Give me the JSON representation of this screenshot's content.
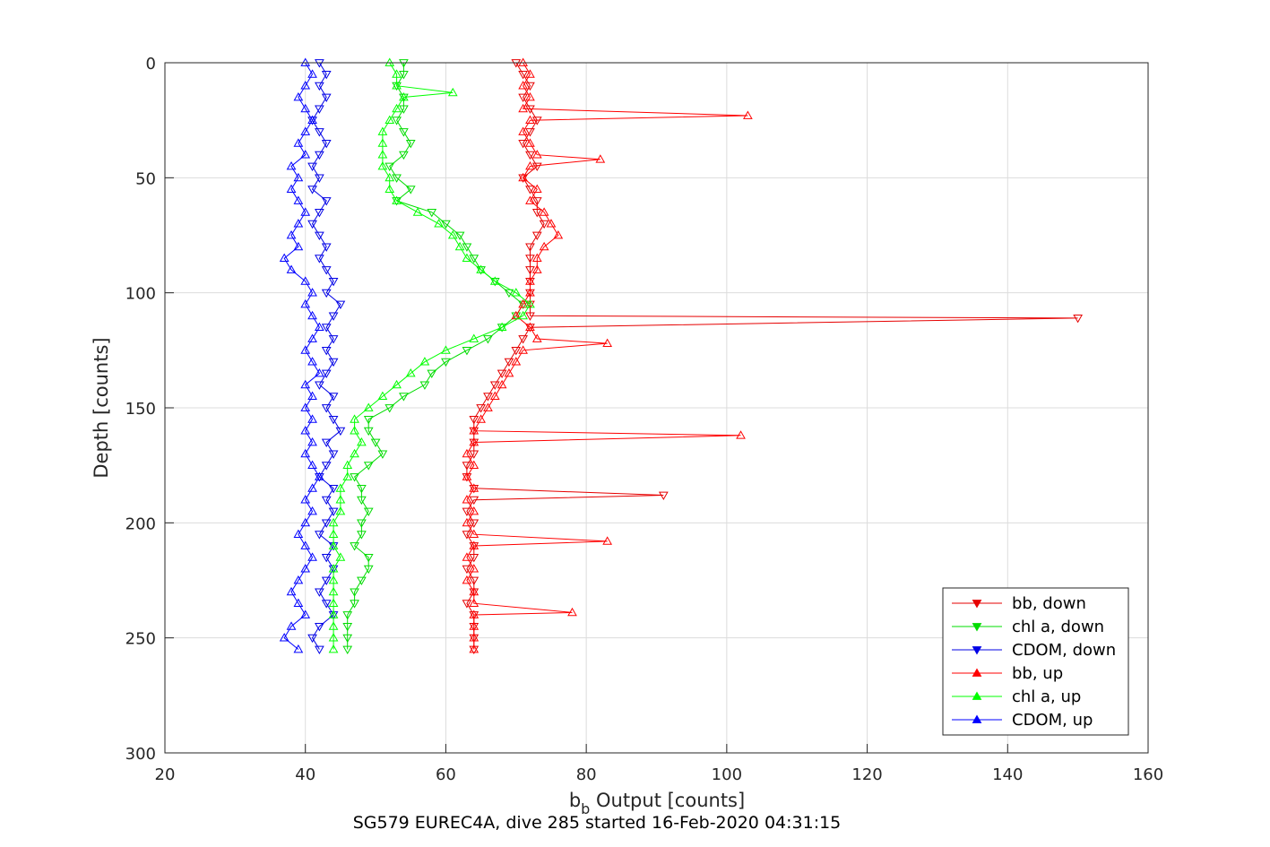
{
  "chart_data": {
    "type": "line",
    "title": "",
    "caption": "SG579 EUREC4A, dive 285 started 16-Feb-2020 04:31:15",
    "xlabel": {
      "main": "b",
      "sub": "b",
      "rest": " Output [counts]"
    },
    "ylabel": "Depth [counts]",
    "xlim": [
      20,
      160
    ],
    "ylim": [
      0,
      300
    ],
    "y_reversed": true,
    "grid": true,
    "xticks": [
      "20",
      "40",
      "60",
      "80",
      "100",
      "120",
      "140",
      "160"
    ],
    "yticks": [
      "0",
      "50",
      "100",
      "150",
      "200",
      "250",
      "300"
    ],
    "legend_position": "bottom-right",
    "series": [
      {
        "name": "bb, down",
        "color": "#e60000",
        "marker": "triangle-down",
        "depth": [
          0,
          5,
          10,
          15,
          20,
          25,
          30,
          35,
          40,
          45,
          50,
          55,
          60,
          65,
          70,
          75,
          80,
          85,
          90,
          95,
          100,
          105,
          110,
          111,
          115,
          120,
          125,
          130,
          135,
          140,
          145,
          150,
          155,
          160,
          165,
          170,
          175,
          180,
          185,
          188,
          190,
          195,
          200,
          205,
          210,
          215,
          220,
          225,
          230,
          235,
          240,
          245,
          250,
          255
        ],
        "values": [
          70,
          71,
          72,
          71,
          72,
          73,
          72,
          71,
          72,
          73,
          71,
          72,
          73,
          73,
          74,
          73,
          72,
          72,
          72,
          72,
          72,
          72,
          72,
          150,
          72,
          71,
          70,
          69,
          68,
          67,
          66,
          65,
          64,
          64,
          64,
          64,
          63,
          63,
          64,
          91,
          64,
          63,
          64,
          63,
          64,
          64,
          63,
          64,
          64,
          63,
          64,
          64,
          64,
          64
        ]
      },
      {
        "name": "chl a, down",
        "color": "#00dc00",
        "marker": "triangle-down",
        "depth": [
          0,
          5,
          10,
          15,
          20,
          25,
          30,
          35,
          40,
          45,
          50,
          55,
          60,
          65,
          70,
          75,
          80,
          85,
          90,
          95,
          100,
          105,
          110,
          115,
          120,
          125,
          130,
          135,
          140,
          145,
          150,
          155,
          160,
          165,
          170,
          175,
          180,
          185,
          190,
          195,
          200,
          205,
          210,
          215,
          220,
          225,
          230,
          235,
          240,
          245,
          250,
          255
        ],
        "values": [
          54,
          54,
          53,
          54,
          54,
          53,
          54,
          55,
          54,
          52,
          53,
          55,
          53,
          58,
          60,
          62,
          63,
          64,
          65,
          67,
          69,
          71,
          70,
          68,
          66,
          63,
          60,
          58,
          57,
          54,
          52,
          49,
          49,
          50,
          51,
          49,
          47,
          48,
          48,
          49,
          48,
          48,
          47,
          49,
          49,
          48,
          47,
          47,
          46,
          46,
          46,
          46
        ]
      },
      {
        "name": "CDOM, down",
        "color": "#0000e6",
        "marker": "triangle-down",
        "depth": [
          0,
          5,
          10,
          15,
          20,
          25,
          30,
          35,
          40,
          45,
          50,
          55,
          60,
          65,
          70,
          75,
          80,
          85,
          90,
          95,
          100,
          105,
          110,
          115,
          120,
          125,
          130,
          135,
          140,
          145,
          150,
          155,
          160,
          165,
          170,
          175,
          180,
          185,
          190,
          195,
          200,
          205,
          210,
          215,
          220,
          225,
          230,
          235,
          240,
          245,
          250,
          255
        ],
        "values": [
          42,
          43,
          42,
          43,
          42,
          41,
          42,
          43,
          42,
          41,
          42,
          41,
          43,
          42,
          41,
          42,
          43,
          42,
          43,
          44,
          43,
          45,
          44,
          43,
          44,
          43,
          44,
          43,
          42,
          44,
          43,
          44,
          45,
          43,
          44,
          43,
          42,
          44,
          43,
          44,
          43,
          42,
          44,
          43,
          44,
          43,
          42,
          43,
          44,
          42,
          41,
          42
        ]
      },
      {
        "name": "bb, up",
        "color": "#ff0000",
        "marker": "triangle-up",
        "depth": [
          0,
          5,
          10,
          15,
          20,
          23,
          25,
          30,
          35,
          40,
          42,
          45,
          50,
          55,
          60,
          65,
          70,
          75,
          80,
          85,
          90,
          95,
          100,
          105,
          110,
          115,
          120,
          122,
          125,
          130,
          135,
          140,
          145,
          150,
          155,
          160,
          162,
          165,
          170,
          175,
          180,
          185,
          190,
          195,
          200,
          205,
          208,
          210,
          215,
          220,
          225,
          230,
          235,
          239,
          240,
          245,
          250,
          255
        ],
        "values": [
          71,
          72,
          71,
          72,
          71,
          103,
          72,
          71,
          72,
          73,
          82,
          72,
          71,
          73,
          72,
          74,
          75,
          76,
          74,
          73,
          73,
          72,
          72,
          71,
          70,
          72,
          73,
          83,
          71,
          70,
          69,
          68,
          67,
          66,
          65,
          64,
          102,
          64,
          63,
          64,
          63,
          64,
          63,
          64,
          63,
          64,
          83,
          64,
          63,
          64,
          63,
          64,
          64,
          78,
          64,
          64,
          64,
          64
        ]
      },
      {
        "name": "chl a, up",
        "color": "#00ff00",
        "marker": "triangle-up",
        "depth": [
          0,
          5,
          10,
          13,
          15,
          20,
          25,
          30,
          35,
          40,
          45,
          50,
          55,
          60,
          65,
          70,
          75,
          80,
          85,
          90,
          95,
          100,
          105,
          110,
          115,
          120,
          125,
          130,
          135,
          140,
          145,
          150,
          155,
          160,
          165,
          170,
          175,
          180,
          185,
          190,
          195,
          200,
          205,
          210,
          215,
          220,
          225,
          230,
          235,
          240,
          245,
          250,
          255
        ],
        "values": [
          52,
          53,
          53,
          61,
          54,
          53,
          52,
          51,
          51,
          51,
          51,
          52,
          52,
          53,
          56,
          59,
          61,
          62,
          63,
          65,
          67,
          70,
          72,
          71,
          68,
          64,
          60,
          57,
          55,
          53,
          51,
          49,
          47,
          47,
          48,
          47,
          46,
          46,
          45,
          45,
          45,
          44,
          44,
          44,
          45,
          44,
          44,
          44,
          44,
          44,
          44,
          44,
          44
        ]
      },
      {
        "name": "CDOM, up",
        "color": "#0000ff",
        "marker": "triangle-up",
        "depth": [
          0,
          5,
          10,
          15,
          20,
          25,
          30,
          35,
          40,
          45,
          50,
          55,
          60,
          65,
          70,
          75,
          80,
          85,
          90,
          95,
          100,
          105,
          110,
          115,
          120,
          125,
          130,
          135,
          140,
          145,
          150,
          155,
          160,
          165,
          170,
          175,
          180,
          185,
          190,
          195,
          200,
          205,
          210,
          215,
          220,
          225,
          230,
          235,
          240,
          245,
          250,
          255
        ],
        "values": [
          40,
          41,
          40,
          39,
          40,
          41,
          40,
          39,
          40,
          38,
          39,
          38,
          39,
          40,
          39,
          38,
          39,
          37,
          38,
          40,
          41,
          40,
          41,
          42,
          41,
          40,
          41,
          42,
          40,
          41,
          40,
          41,
          40,
          41,
          40,
          41,
          42,
          41,
          40,
          41,
          40,
          39,
          40,
          41,
          40,
          39,
          38,
          39,
          40,
          38,
          37,
          39
        ]
      }
    ]
  }
}
